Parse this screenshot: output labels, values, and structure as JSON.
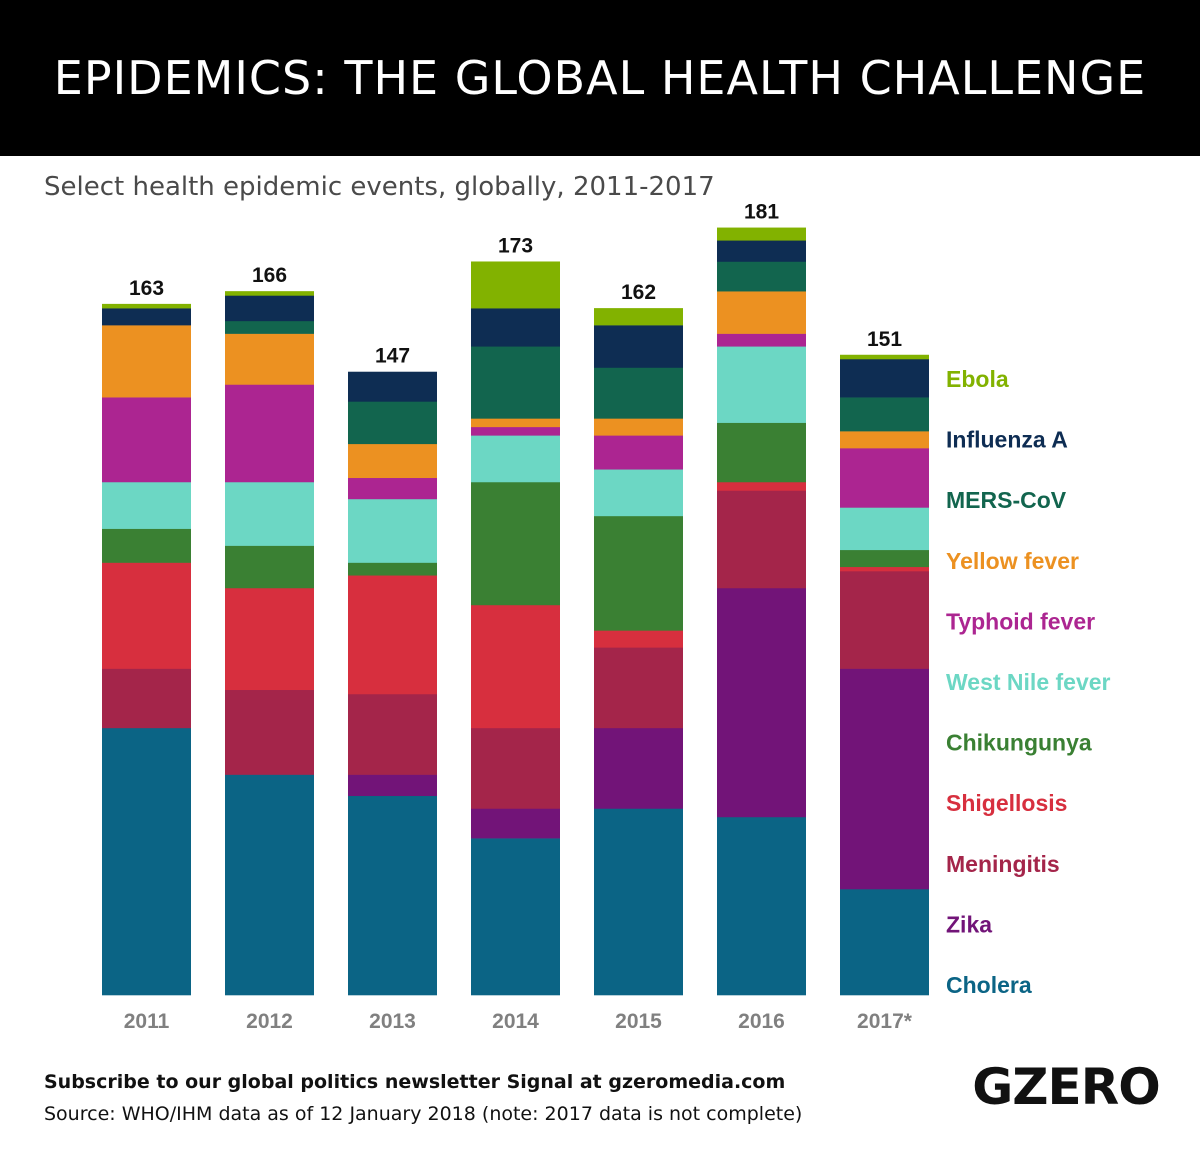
{
  "header": {
    "title": "EPIDEMICS: THE GLOBAL HEALTH CHALLENGE"
  },
  "subtitle": "Select health epidemic events, globally, 2011-2017",
  "footer": {
    "cta": "Subscribe to our global politics newsletter Signal at gzeromedia.com",
    "source": "Source: WHO/IHM data as of 12 January 2018 (note: 2017 data is not complete)"
  },
  "logo": "GZERO",
  "chart_data": {
    "type": "bar",
    "stacked": true,
    "title": "EPIDEMICS: THE GLOBAL HEALTH CHALLENGE",
    "subtitle": "Select health epidemic events, globally, 2011-2017",
    "xlabel": "",
    "ylabel": "",
    "ylim": [
      0,
      181
    ],
    "grid": false,
    "legend_position": "right",
    "categories": [
      "2011",
      "2012",
      "2013",
      "2014",
      "2015",
      "2016",
      "2017*"
    ],
    "totals": [
      163,
      166,
      147,
      173,
      162,
      181,
      151
    ],
    "series": [
      {
        "name": "Cholera",
        "color": "#0b6485",
        "values": [
          63,
          52,
          47,
          37,
          44,
          42,
          25
        ]
      },
      {
        "name": "Zika",
        "color": "#721478",
        "values": [
          0,
          0,
          5,
          7,
          19,
          54,
          52
        ]
      },
      {
        "name": "Meningitis",
        "color": "#a4254a",
        "values": [
          14,
          20,
          19,
          19,
          19,
          23,
          23
        ]
      },
      {
        "name": "Shigellosis",
        "color": "#d72f3e",
        "values": [
          25,
          24,
          28,
          29,
          4,
          2,
          1
        ]
      },
      {
        "name": "Chikungunya",
        "color": "#3a8033",
        "values": [
          8,
          10,
          3,
          29,
          27,
          14,
          4
        ]
      },
      {
        "name": "West Nile fever",
        "color": "#6cd7c4",
        "values": [
          11,
          15,
          15,
          11,
          11,
          18,
          10
        ]
      },
      {
        "name": "Typhoid fever",
        "color": "#ac2591",
        "values": [
          20,
          23,
          5,
          2,
          8,
          3,
          14
        ]
      },
      {
        "name": "Yellow fever",
        "color": "#ec9121",
        "values": [
          17,
          12,
          8,
          2,
          4,
          10,
          4
        ]
      },
      {
        "name": "MERS-CoV",
        "color": "#12654e",
        "values": [
          0,
          3,
          10,
          17,
          12,
          7,
          8
        ]
      },
      {
        "name": "Influenza A",
        "color": "#0e2d53",
        "values": [
          4,
          6,
          7,
          9,
          10,
          5,
          9
        ]
      },
      {
        "name": "Ebola",
        "color": "#82b200",
        "values": [
          1,
          1,
          0,
          11,
          4,
          3,
          1
        ]
      }
    ]
  }
}
